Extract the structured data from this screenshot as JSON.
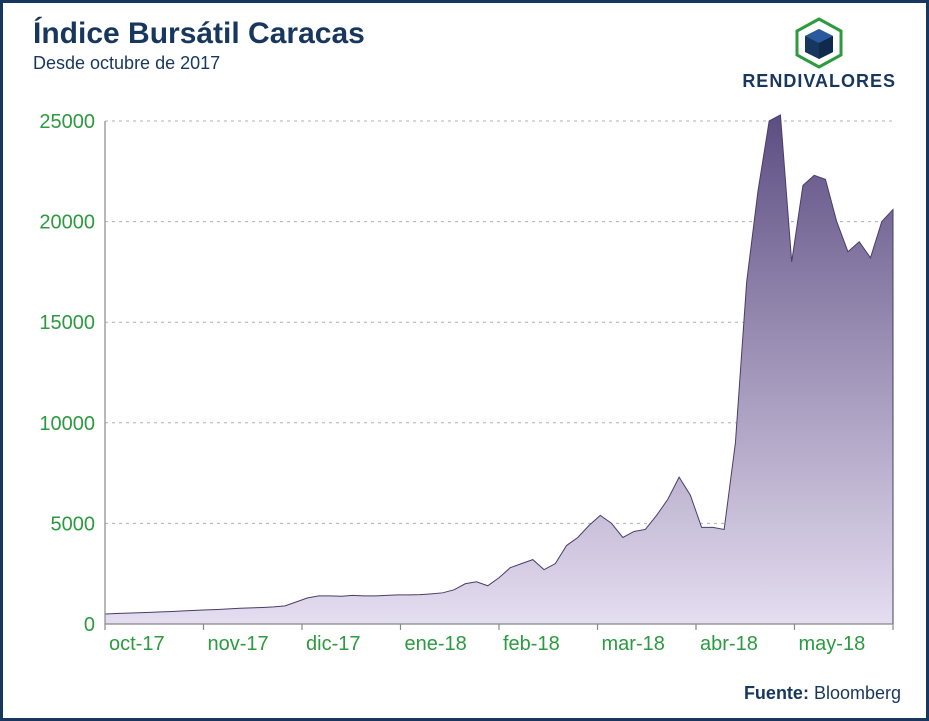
{
  "header": {
    "title": "Índice Bursátil Caracas",
    "subtitle": "Desde octubre de 2017",
    "brand": "RENDIVALORES"
  },
  "source": {
    "label": "Fuente:",
    "value": "Bloomberg"
  },
  "chart": {
    "type": "area",
    "background_color": "#ffffff",
    "border_color": "#17375e",
    "grid_color": "#b0b0b0",
    "axis_color": "#888888",
    "fill_top_color": "#5d4e82",
    "fill_bottom_color": "#e5ddf0",
    "stroke_color": "#4a3d6b",
    "tick_label_color": "#2c9a3f",
    "tick_fontsize": 20,
    "ylim": [
      0,
      25000
    ],
    "yticks": [
      0,
      5000,
      10000,
      15000,
      20000,
      25000
    ],
    "x_categories": [
      "oct-17",
      "nov-17",
      "dic-17",
      "ene-18",
      "feb-18",
      "mar-18",
      "abr-18",
      "may-18"
    ],
    "values": [
      500,
      520,
      540,
      560,
      580,
      600,
      620,
      650,
      680,
      700,
      720,
      750,
      780,
      800,
      820,
      850,
      900,
      1100,
      1300,
      1400,
      1400,
      1380,
      1420,
      1400,
      1400,
      1420,
      1450,
      1450,
      1460,
      1500,
      1550,
      1700,
      2000,
      2100,
      1900,
      2300,
      2800,
      3000,
      3200,
      2700,
      3000,
      3900,
      4300,
      4900,
      5400,
      5000,
      4300,
      4600,
      4700,
      5400,
      6200,
      7300,
      6400,
      4800,
      4800,
      4700,
      9000,
      17000,
      21500,
      25000,
      25300,
      18000,
      21800,
      22300,
      22100,
      20000,
      18500,
      19000,
      18200,
      20000,
      20600
    ]
  }
}
